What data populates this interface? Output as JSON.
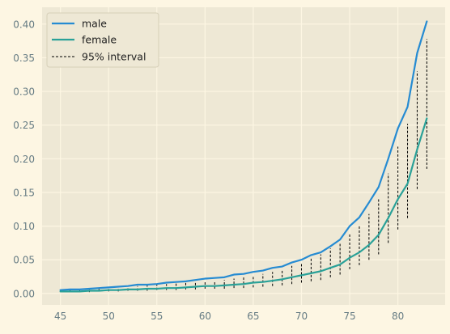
{
  "chart_data": {
    "type": "line",
    "title": "",
    "xlabel": "",
    "ylabel": "",
    "xlim": [
      43.1,
      84.9
    ],
    "ylim": [
      -0.017,
      0.425
    ],
    "grid": true,
    "legend_position": "top-left",
    "colors": {
      "background": "#fdf6e3",
      "axes_face": "#eee8d5",
      "grid": "#fdf6e3",
      "tick_text": "#657b83",
      "male": "#268bd2",
      "female": "#2aa198",
      "interval": "#000000"
    },
    "x_ticks": [
      45,
      50,
      55,
      60,
      65,
      70,
      75,
      80
    ],
    "x_tick_labels": [
      "45",
      "50",
      "55",
      "60",
      "65",
      "70",
      "75",
      "80"
    ],
    "y_ticks": [
      0.0,
      0.05,
      0.1,
      0.15,
      0.2,
      0.25,
      0.3,
      0.35,
      0.4
    ],
    "y_tick_labels": [
      "0.00",
      "0.05",
      "0.10",
      "0.15",
      "0.20",
      "0.25",
      "0.30",
      "0.35",
      "0.40"
    ],
    "legend": [
      {
        "label": "male",
        "style": "solid",
        "color": "#268bd2"
      },
      {
        "label": "female",
        "style": "solid",
        "color": "#2aa198"
      },
      {
        "label": "95% interval",
        "style": "dashed",
        "color": "#000000"
      }
    ],
    "x": [
      45,
      46,
      47,
      48,
      49,
      50,
      51,
      52,
      53,
      54,
      55,
      56,
      57,
      58,
      59,
      60,
      61,
      62,
      63,
      64,
      65,
      66,
      67,
      68,
      69,
      70,
      71,
      72,
      73,
      74,
      75,
      76,
      77,
      78,
      79,
      80,
      81,
      82,
      83
    ],
    "series": [
      {
        "name": "male",
        "values": [
          0.005,
          0.006,
          0.006,
          0.007,
          0.008,
          0.009,
          0.01,
          0.011,
          0.013,
          0.013,
          0.014,
          0.016,
          0.017,
          0.018,
          0.02,
          0.022,
          0.023,
          0.024,
          0.028,
          0.029,
          0.032,
          0.034,
          0.038,
          0.04,
          0.046,
          0.05,
          0.057,
          0.061,
          0.07,
          0.08,
          0.1,
          0.113,
          0.135,
          0.158,
          0.2,
          0.245,
          0.277,
          0.357,
          0.404
        ]
      },
      {
        "name": "female",
        "values": [
          0.003,
          0.003,
          0.003,
          0.004,
          0.004,
          0.005,
          0.005,
          0.006,
          0.006,
          0.007,
          0.007,
          0.008,
          0.008,
          0.009,
          0.01,
          0.011,
          0.011,
          0.012,
          0.013,
          0.014,
          0.016,
          0.017,
          0.019,
          0.021,
          0.024,
          0.027,
          0.03,
          0.033,
          0.038,
          0.043,
          0.053,
          0.061,
          0.072,
          0.087,
          0.112,
          0.14,
          0.163,
          0.214,
          0.26
        ]
      }
    ],
    "intervals": {
      "x": [
        45,
        46,
        47,
        48,
        49,
        50,
        51,
        52,
        53,
        54,
        55,
        56,
        57,
        58,
        59,
        60,
        61,
        62,
        63,
        64,
        65,
        66,
        67,
        68,
        69,
        70,
        71,
        72,
        73,
        74,
        75,
        76,
        77,
        78,
        79,
        80,
        81,
        82,
        83
      ],
      "low": [
        0.002,
        0.002,
        0.002,
        0.002,
        0.003,
        0.003,
        0.003,
        0.004,
        0.004,
        0.004,
        0.005,
        0.005,
        0.005,
        0.006,
        0.006,
        0.007,
        0.007,
        0.007,
        0.008,
        0.008,
        0.009,
        0.01,
        0.011,
        0.012,
        0.014,
        0.016,
        0.018,
        0.02,
        0.024,
        0.028,
        0.036,
        0.042,
        0.05,
        0.058,
        0.075,
        0.095,
        0.112,
        0.155,
        0.185
      ],
      "high": [
        0.006,
        0.006,
        0.007,
        0.007,
        0.008,
        0.009,
        0.009,
        0.01,
        0.011,
        0.012,
        0.013,
        0.014,
        0.015,
        0.016,
        0.017,
        0.018,
        0.019,
        0.02,
        0.022,
        0.024,
        0.026,
        0.029,
        0.032,
        0.036,
        0.041,
        0.046,
        0.052,
        0.058,
        0.067,
        0.075,
        0.088,
        0.1,
        0.118,
        0.14,
        0.178,
        0.218,
        0.252,
        0.33,
        0.378
      ]
    }
  }
}
